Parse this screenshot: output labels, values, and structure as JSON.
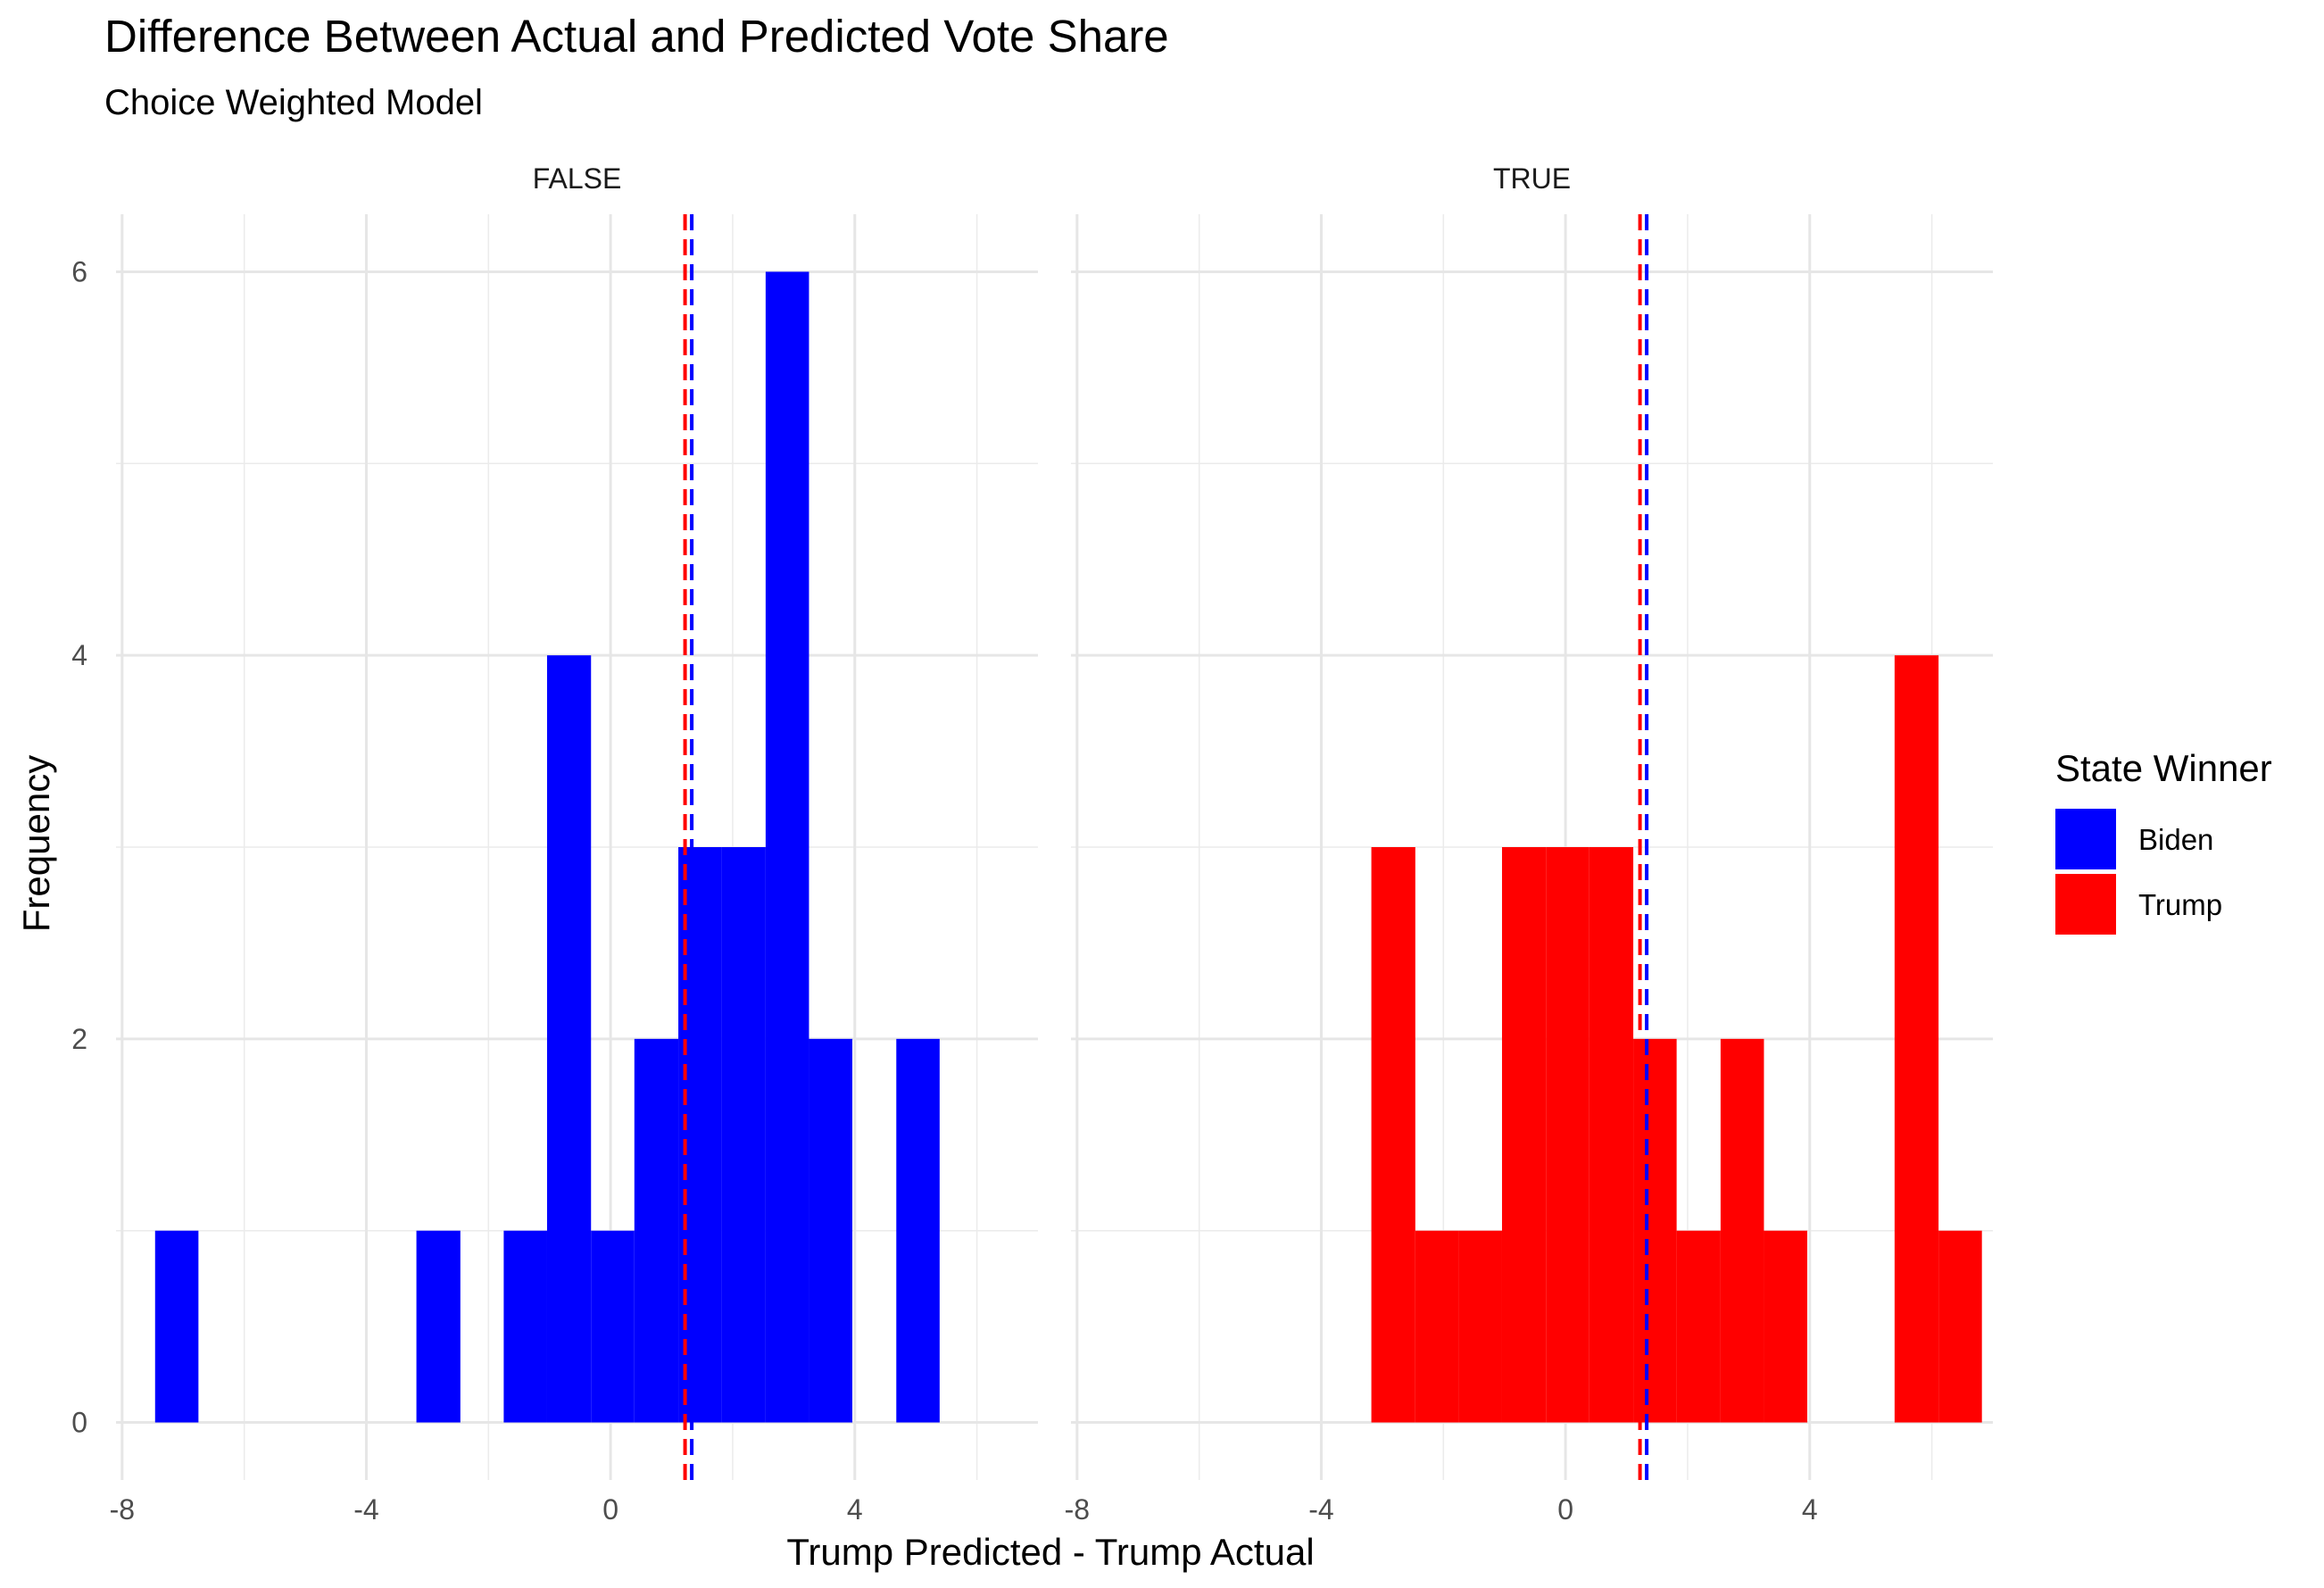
{
  "chart_data": {
    "type": "bar",
    "title": "Difference Between Actual and Predicted Vote Share",
    "subtitle": "Choice Weighted Model",
    "xlabel": "Trump Predicted - Trump Actual",
    "ylabel": "Frequency",
    "xlim": [
      -8.1,
      7.0
    ],
    "ylim": [
      -0.3,
      6.3
    ],
    "x_ticks": [
      "-8",
      "-4",
      "0",
      "4"
    ],
    "x_tick_values": [
      -8,
      -4,
      0,
      4
    ],
    "y_ticks": [
      "0",
      "2",
      "4",
      "6"
    ],
    "y_tick_values": [
      0,
      2,
      4,
      6
    ],
    "bin_width": 0.714,
    "grid": true,
    "legend": {
      "title": "State Winner",
      "position": "right",
      "items": [
        {
          "label": "Biden",
          "color": "#0000ff"
        },
        {
          "label": "Trump",
          "color": "#ff0000"
        }
      ]
    },
    "mean_lines": [
      {
        "color": "#ff0000",
        "x": 1.22,
        "style": "dashed"
      },
      {
        "color": "#0000ff",
        "x": 1.33,
        "style": "dashed"
      }
    ],
    "facets": [
      {
        "label": "FALSE",
        "series_color": "#0000ff",
        "bins": [
          {
            "x0": -7.46,
            "x1": -6.75,
            "count": 1
          },
          {
            "x0": -3.18,
            "x1": -2.46,
            "count": 1
          },
          {
            "x0": -1.75,
            "x1": -1.04,
            "count": 1
          },
          {
            "x0": -1.04,
            "x1": -0.32,
            "count": 4
          },
          {
            "x0": -0.32,
            "x1": 0.39,
            "count": 1
          },
          {
            "x0": 0.39,
            "x1": 1.11,
            "count": 2
          },
          {
            "x0": 1.11,
            "x1": 1.82,
            "count": 3
          },
          {
            "x0": 1.82,
            "x1": 2.54,
            "count": 3
          },
          {
            "x0": 2.54,
            "x1": 3.25,
            "count": 6
          },
          {
            "x0": 3.25,
            "x1": 3.96,
            "count": 2
          },
          {
            "x0": 4.68,
            "x1": 5.39,
            "count": 2
          }
        ]
      },
      {
        "label": "TRUE",
        "series_color": "#ff0000",
        "bins": [
          {
            "x0": -3.18,
            "x1": -2.46,
            "count": 3
          },
          {
            "x0": -2.46,
            "x1": -1.75,
            "count": 1
          },
          {
            "x0": -1.75,
            "x1": -1.04,
            "count": 1
          },
          {
            "x0": -1.04,
            "x1": -0.32,
            "count": 3
          },
          {
            "x0": -0.32,
            "x1": 0.39,
            "count": 3
          },
          {
            "x0": 0.39,
            "x1": 1.11,
            "count": 3
          },
          {
            "x0": 1.11,
            "x1": 1.82,
            "count": 2
          },
          {
            "x0": 1.82,
            "x1": 2.54,
            "count": 1
          },
          {
            "x0": 2.54,
            "x1": 3.25,
            "count": 2
          },
          {
            "x0": 3.25,
            "x1": 3.96,
            "count": 1
          },
          {
            "x0": 5.39,
            "x1": 6.11,
            "count": 4
          },
          {
            "x0": 6.11,
            "x1": 6.82,
            "count": 1
          }
        ]
      }
    ]
  }
}
